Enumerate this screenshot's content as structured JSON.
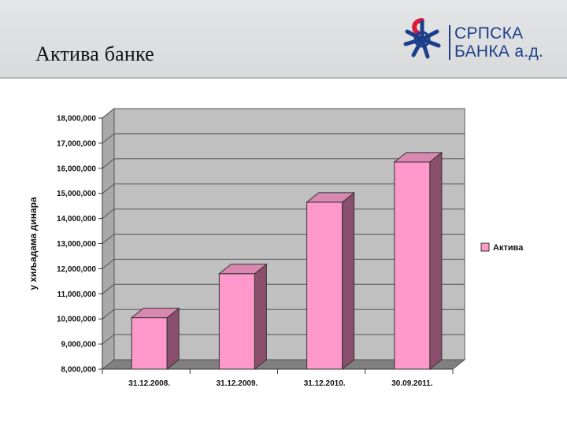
{
  "slide": {
    "title": "Актива банке"
  },
  "logo": {
    "line1": "СРПСКА",
    "line2": "БАНКА а.д.",
    "primary_color": "#1c3f8c",
    "accent_color": "#d81f3a"
  },
  "chart_data": {
    "type": "bar",
    "style": "3d",
    "title": "",
    "xlabel": "",
    "ylabel": "у хиљадама динара",
    "categories": [
      "31.12.2008.",
      "31.12.2009.",
      "31.12.2010.",
      "30.09.2011."
    ],
    "series": [
      {
        "name": "Актива",
        "values": [
          10050000,
          11800000,
          14650000,
          16250000
        ],
        "color": "#ff99cc"
      }
    ],
    "ylim": [
      8000000,
      18000000
    ],
    "yticks": [
      8000000,
      9000000,
      10000000,
      11000000,
      12000000,
      13000000,
      14000000,
      15000000,
      16000000,
      17000000,
      18000000
    ],
    "ytick_labels": [
      "8,000,000",
      "9,000,000",
      "10,000,000",
      "11,000,000",
      "12,000,000",
      "13,000,000",
      "14,000,000",
      "15,000,000",
      "16,000,000",
      "17,000,000",
      "18,000,000"
    ],
    "grid": true,
    "legend": "right",
    "wall_color": "#c0c0c0",
    "floor_color": "#808080"
  }
}
